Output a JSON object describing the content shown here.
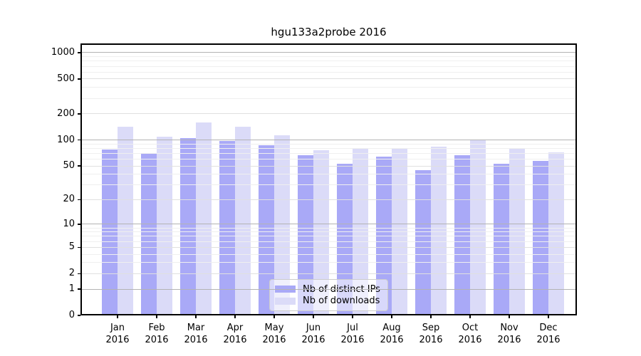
{
  "title": "hgu133a2probe 2016",
  "chart_data": {
    "type": "bar",
    "title": "hgu133a2probe 2016",
    "categories": [
      "Jan",
      "Feb",
      "Mar",
      "Apr",
      "May",
      "Jun",
      "Jul",
      "Aug",
      "Sep",
      "Oct",
      "Nov",
      "Dec"
    ],
    "year": "2016",
    "series": [
      {
        "name": "Nb of distinct IPs",
        "color": "#a9a9f7",
        "values": [
          77,
          70,
          104,
          97,
          86,
          66,
          53,
          64,
          45,
          66,
          53,
          57
        ]
      },
      {
        "name": "Nb of downloads",
        "color": "#dbdbf8",
        "values": [
          141,
          108,
          158,
          141,
          114,
          76,
          79,
          81,
          83,
          100,
          81,
          72
        ]
      }
    ],
    "y_scale": "log10(value+1)",
    "y_ticks": [
      0,
      1,
      2,
      5,
      10,
      20,
      50,
      100,
      200,
      500,
      1000
    ],
    "ylim": [
      0,
      1275
    ],
    "grid": true,
    "legend_position": "lower center",
    "colors": {
      "axis": "#000000",
      "grid_major": "#b3b3b3",
      "grid_mid": "#e0e0e0",
      "grid_minor": "#efefef",
      "background": "#ffffff"
    }
  }
}
